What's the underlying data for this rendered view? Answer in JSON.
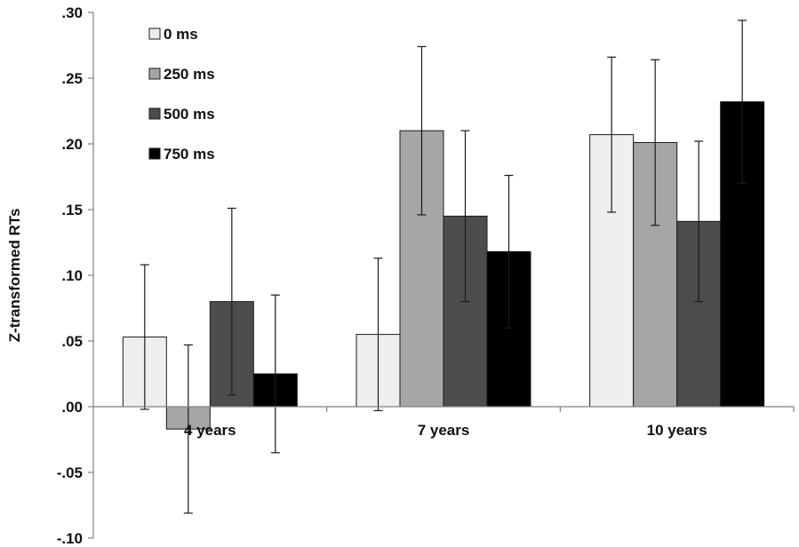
{
  "chart_data": {
    "type": "bar",
    "ylabel": "Z-transformed RTs",
    "ylim": [
      -0.1,
      0.3
    ],
    "yticks": [
      ".30",
      ".25",
      ".20",
      ".15",
      ".10",
      ".05",
      ".00",
      "-.05",
      "-.10"
    ],
    "ytick_values": [
      0.3,
      0.25,
      0.2,
      0.15,
      0.1,
      0.05,
      0.0,
      -0.05,
      -0.1
    ],
    "categories": [
      "4 years",
      "7 years",
      "10 years"
    ],
    "legend_position": "top-left",
    "grid": false,
    "series": [
      {
        "name": "0 ms",
        "color": "#eeeeee",
        "values": [
          0.053,
          0.055,
          0.207
        ],
        "error": [
          0.055,
          0.058,
          0.059
        ]
      },
      {
        "name": "250 ms",
        "color": "#a6a6a6",
        "values": [
          -0.017,
          0.21,
          0.201
        ],
        "error": [
          0.064,
          0.064,
          0.063
        ]
      },
      {
        "name": "500 ms",
        "color": "#4d4d4d",
        "values": [
          0.08,
          0.145,
          0.141
        ],
        "error": [
          0.071,
          0.065,
          0.061
        ]
      },
      {
        "name": "750 ms",
        "color": "#000000",
        "values": [
          0.025,
          0.118,
          0.232
        ],
        "error": [
          0.06,
          0.058,
          0.062
        ]
      }
    ]
  }
}
